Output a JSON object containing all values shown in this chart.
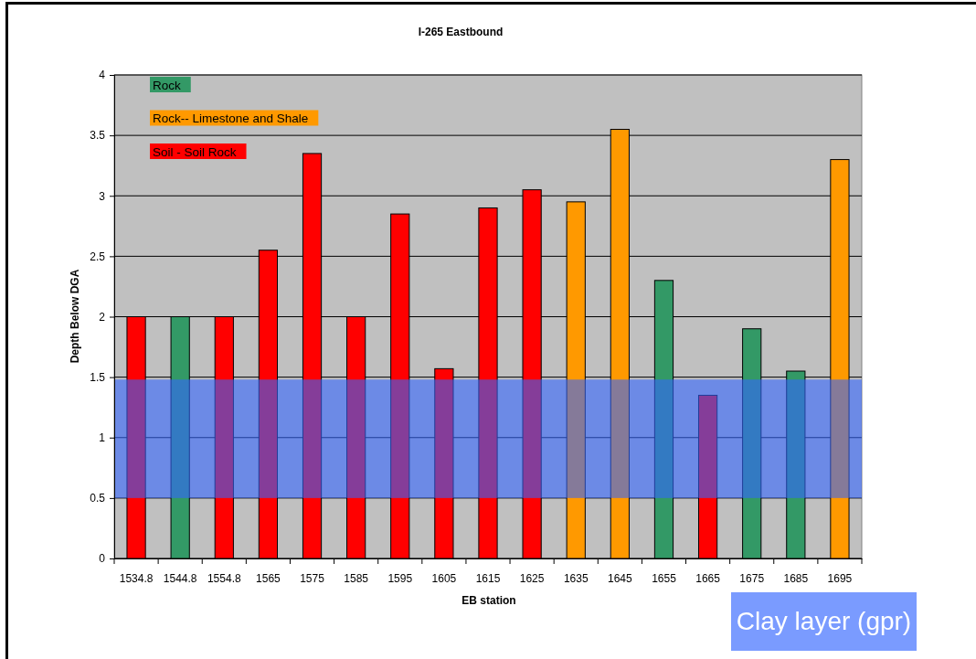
{
  "chart_data": {
    "type": "bar",
    "title": "I-265 Eastbound",
    "xlabel": "EB station",
    "ylabel": "Depth Below DGA",
    "categories": [
      "1534.8",
      "1544.8",
      "1554.8",
      "1565",
      "1575",
      "1585",
      "1595",
      "1605",
      "1615",
      "1625",
      "1635",
      "1645",
      "1655",
      "1665",
      "1675",
      "1685",
      "1695"
    ],
    "series": [
      {
        "name": "Rock",
        "color": "#339966",
        "values": [
          null,
          2,
          null,
          null,
          null,
          null,
          null,
          null,
          null,
          null,
          null,
          null,
          2.3,
          null,
          1.9,
          1.55,
          null
        ]
      },
      {
        "name": "Rock-- Limestone and Shale",
        "color": "#ff9900",
        "values": [
          null,
          null,
          null,
          null,
          null,
          null,
          null,
          null,
          null,
          null,
          2.95,
          3.55,
          null,
          null,
          null,
          null,
          3.3
        ]
      },
      {
        "name": "Soil - Soil Rock",
        "color": "#ff0000",
        "values": [
          2,
          null,
          2,
          2.55,
          3.35,
          2,
          2.85,
          1.57,
          2.9,
          3.05,
          null,
          null,
          null,
          1.35,
          null,
          null,
          null
        ]
      }
    ],
    "stacked": true,
    "ylim": [
      0,
      4
    ],
    "yticks": [
      0,
      0.5,
      1,
      1.5,
      2,
      2.5,
      3,
      3.5,
      4
    ],
    "grid": "y",
    "legend": "top left",
    "bands": [
      {
        "axis": "y",
        "from": 0.5,
        "to": 1.48,
        "color": "#3366ff"
      }
    ],
    "annotations": [
      "Clay layer (gpr)"
    ]
  }
}
